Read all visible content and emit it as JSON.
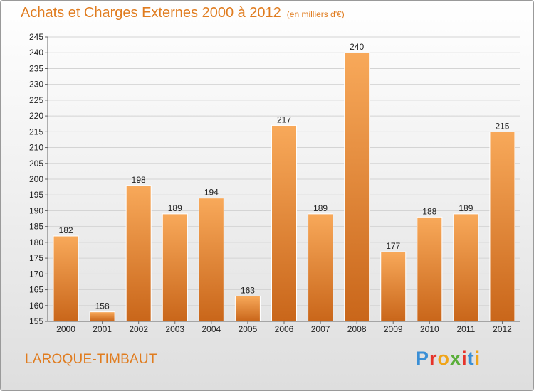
{
  "header": {
    "title": "Achats et Charges Externes 2000 à 2012",
    "unit": "(en milliers d'€)"
  },
  "footer": {
    "commune": "LAROQUE-TIMBAUT",
    "logo_letters": [
      "P",
      "r",
      "o",
      "x",
      "i",
      "t",
      "i"
    ]
  },
  "colors": {
    "accent": "#e07c1f",
    "bar_top": "#f8a95a",
    "bar_bottom": "#c9661a",
    "logo": [
      "#3a8fd6",
      "#e6332a",
      "#f0a418",
      "#5aae3a",
      "#e6332a",
      "#3a8fd6",
      "#f0a418"
    ]
  },
  "chart_data": {
    "type": "bar",
    "title": "Achats et Charges Externes 2000 à 2012",
    "subtitle": "(en milliers d'€)",
    "categories": [
      "2000",
      "2001",
      "2002",
      "2003",
      "2004",
      "2005",
      "2006",
      "2007",
      "2008",
      "2009",
      "2010",
      "2011",
      "2012"
    ],
    "values": [
      182,
      158,
      198,
      189,
      194,
      163,
      217,
      189,
      240,
      177,
      188,
      189,
      215
    ],
    "ylim": [
      155,
      245
    ],
    "yticks": [
      155,
      160,
      165,
      170,
      175,
      180,
      185,
      190,
      195,
      200,
      205,
      210,
      215,
      220,
      225,
      230,
      235,
      240,
      245
    ],
    "grid": true,
    "data_labels": true
  }
}
